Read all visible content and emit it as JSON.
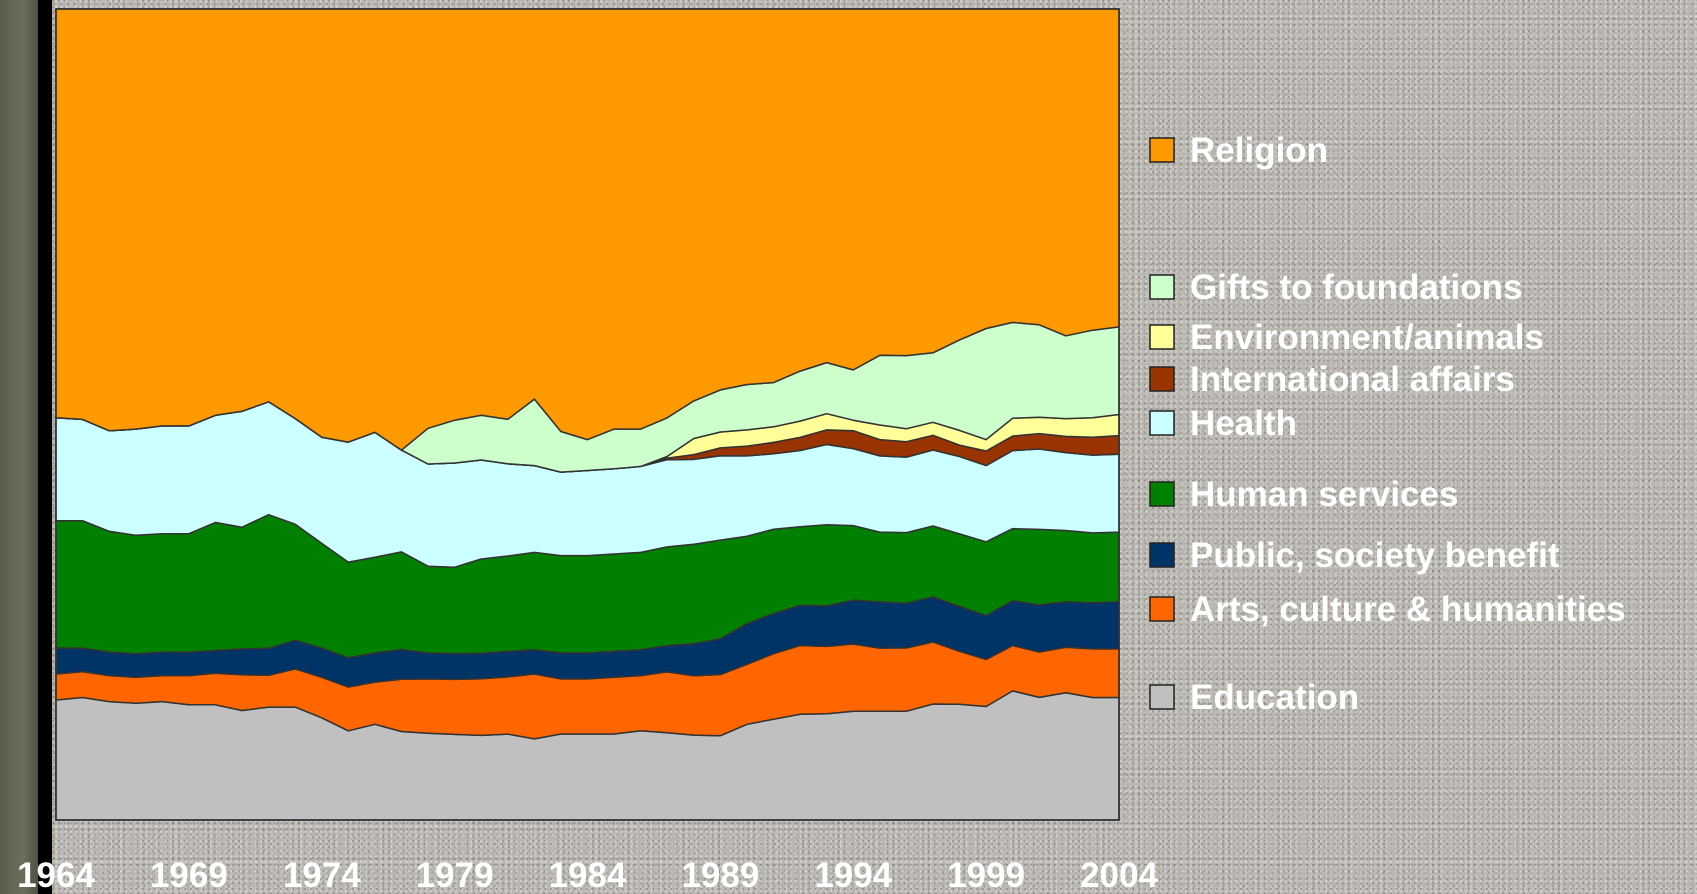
{
  "chart_data": {
    "type": "area",
    "stacked": "percent",
    "title": "",
    "xlabel": "",
    "ylabel": "",
    "x": [
      1964,
      1965,
      1966,
      1967,
      1968,
      1969,
      1970,
      1971,
      1972,
      1973,
      1974,
      1975,
      1976,
      1977,
      1978,
      1979,
      1980,
      1981,
      1982,
      1983,
      1984,
      1985,
      1986,
      1987,
      1988,
      1989,
      1990,
      1991,
      1992,
      1993,
      1994,
      1995,
      1996,
      1997,
      1998,
      1999,
      2000,
      2001,
      2002,
      2003,
      2004
    ],
    "x_tick_labels": [
      "1964",
      "1969",
      "1974",
      "1979",
      "1984",
      "1989",
      "1994",
      "1999",
      "2004"
    ],
    "ylim": [
      0,
      100
    ],
    "grid": false,
    "legend_position": "right",
    "series": [
      {
        "name": "Education",
        "color": "#c0c0c0",
        "values": [
          14.8,
          15.1,
          14.6,
          14.4,
          14.6,
          14.2,
          14.2,
          13.5,
          14.2,
          14.2,
          12.6,
          11.0,
          11.8,
          10.7,
          10.7,
          10.6,
          10.6,
          10.8,
          10.0,
          10.6,
          10.6,
          10.6,
          11.0,
          10.6,
          10.6,
          10.6,
          11.8,
          12.3,
          12.9,
          13.1,
          13.4,
          13.4,
          13.4,
          14.2,
          14.2,
          14.0,
          15.9,
          15.1,
          15.7,
          15.1,
          15.1
        ]
      },
      {
        "name": "Arts, culture & humanities",
        "color": "#ff6600",
        "values": [
          3.2,
          3.2,
          3.2,
          3.2,
          3.2,
          3.6,
          3.9,
          4.4,
          4.0,
          4.8,
          5.0,
          5.4,
          5.2,
          6.3,
          6.7,
          6.8,
          7.1,
          7.2,
          8.0,
          6.8,
          6.8,
          7.0,
          6.8,
          7.4,
          7.4,
          7.7,
          7.4,
          8.0,
          8.4,
          8.3,
          8.3,
          7.8,
          7.8,
          7.6,
          6.5,
          5.8,
          5.6,
          5.6,
          5.6,
          6.0,
          6.0
        ]
      },
      {
        "name": "Public, society benefit",
        "color": "#003366",
        "values": [
          3.2,
          2.9,
          2.9,
          2.9,
          2.9,
          2.9,
          2.8,
          3.2,
          3.4,
          3.6,
          3.6,
          3.6,
          3.6,
          3.6,
          3.2,
          3.2,
          3.2,
          3.2,
          3.0,
          3.2,
          3.2,
          3.2,
          3.2,
          3.2,
          4.0,
          4.5,
          5.0,
          4.9,
          4.9,
          5.0,
          5.4,
          5.7,
          5.5,
          5.5,
          5.5,
          5.4,
          5.5,
          5.8,
          5.6,
          5.7,
          5.8
        ]
      },
      {
        "name": "Human services",
        "color": "#008000",
        "values": [
          15.7,
          15.7,
          14.9,
          14.6,
          14.6,
          14.6,
          15.8,
          15.0,
          16.8,
          14.6,
          12.9,
          11.8,
          11.8,
          11.8,
          10.7,
          10.7,
          11.8,
          12.0,
          12.0,
          12.0,
          12.0,
          12.0,
          12.0,
          12.0,
          12.4,
          12.4,
          10.8,
          10.3,
          9.6,
          10.0,
          9.2,
          8.6,
          8.7,
          8.7,
          8.9,
          9.1,
          8.9,
          9.3,
          8.8,
          8.6,
          8.6
        ]
      },
      {
        "name": "Health",
        "color": "#ccffff",
        "values": [
          12.7,
          12.5,
          12.4,
          13.1,
          13.3,
          13.3,
          13.2,
          14.3,
          14.2,
          13.3,
          13.1,
          14.8,
          15.4,
          12.3,
          12.6,
          12.9,
          12.4,
          11.6,
          10.7,
          10.3,
          10.5,
          10.5,
          10.6,
          10.6,
          10.6,
          10.6,
          9.9,
          9.2,
          9.3,
          9.9,
          9.5,
          9.4,
          9.3,
          9.3,
          9.5,
          9.4,
          9.6,
          9.9,
          9.6,
          9.6,
          9.6
        ]
      },
      {
        "name": "International affairs",
        "color": "#993300",
        "values": [
          0,
          0,
          0,
          0,
          0,
          0,
          0,
          0,
          0,
          0,
          0,
          0,
          0,
          0,
          0,
          0,
          0,
          0,
          0,
          0,
          0,
          0,
          0,
          0.2,
          0.6,
          1.0,
          1.2,
          1.4,
          1.6,
          1.8,
          2.2,
          2.0,
          1.9,
          1.8,
          1.4,
          1.8,
          1.8,
          1.9,
          2.0,
          2.2,
          2.3
        ]
      },
      {
        "name": "Environment/animals",
        "color": "#ffff99",
        "values": [
          0,
          0,
          0,
          0,
          0,
          0,
          0,
          0,
          0,
          0,
          0,
          0,
          0,
          0,
          0,
          0,
          0,
          0,
          0,
          0,
          0,
          0,
          0,
          0.2,
          2.0,
          2.0,
          2.0,
          1.9,
          2.0,
          2.0,
          1.3,
          1.8,
          1.6,
          1.6,
          1.8,
          1.4,
          2.2,
          2.0,
          2.2,
          2.4,
          2.6
        ]
      },
      {
        "name": "Gifts to foundations",
        "color": "#ccffcc",
        "values": [
          0,
          0,
          0,
          0,
          0,
          0,
          0,
          0,
          0,
          0,
          0,
          0,
          0,
          0,
          4.4,
          5.3,
          5.6,
          5.6,
          8.2,
          5.0,
          3.8,
          4.9,
          4.6,
          4.7,
          4.7,
          5.3,
          5.6,
          5.4,
          6.1,
          6.3,
          6.2,
          8.6,
          9.0,
          8.5,
          11.1,
          13.7,
          11.8,
          11.4,
          10.2,
          10.8,
          10.8
        ]
      },
      {
        "name": "Religion",
        "color": "#ff9900",
        "values": [
          50.4,
          50.6,
          52.0,
          51.8,
          51.4,
          51.4,
          50.1,
          49.6,
          49.4,
          51.5,
          52.8,
          53.4,
          52.2,
          53.3,
          51.7,
          50.9,
          50.9,
          51.6,
          48.1,
          52.1,
          53.1,
          51.8,
          51.8,
          49.7,
          48.9,
          47.9,
          46.3,
          45.6,
          44.2,
          43.6,
          44.5,
          42.7,
          42.7,
          42.1,
          40.6,
          39.4,
          38.6,
          38.9,
          40.3,
          39.6,
          39.2
        ]
      }
    ],
    "legend_order": [
      "Religion",
      "Gifts to foundations",
      "Environment/animals",
      "International affairs",
      "Health",
      "Human services",
      "Public, society benefit",
      "Arts, culture & humanities",
      "Education"
    ]
  }
}
